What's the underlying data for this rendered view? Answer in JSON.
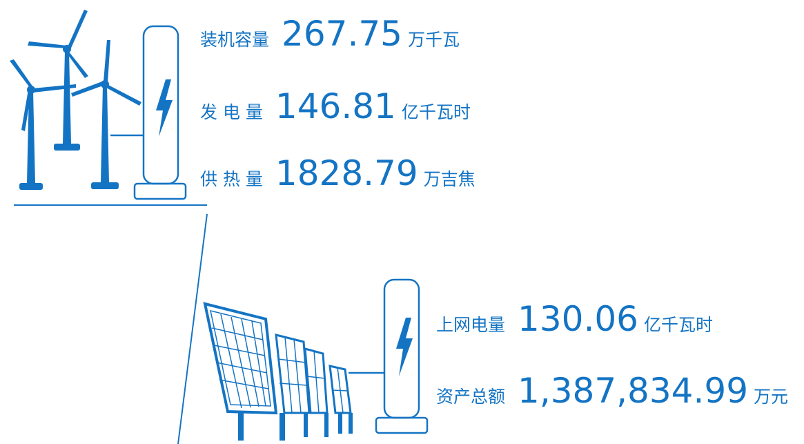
{
  "wind": {
    "stats": [
      {
        "label": "装机容量",
        "value": "267.75",
        "unit": "万千瓦"
      },
      {
        "label": "发 电 量",
        "value": "146.81",
        "unit": "亿千瓦时"
      },
      {
        "label": "供 热 量",
        "value": "1828.79",
        "unit": "万吉焦"
      }
    ]
  },
  "solar": {
    "stats": [
      {
        "label": "上网电量",
        "value": "130.06",
        "unit": "亿千瓦时"
      },
      {
        "label": "资产总额",
        "value": "1,387,834.99",
        "unit": "万元"
      }
    ]
  }
}
